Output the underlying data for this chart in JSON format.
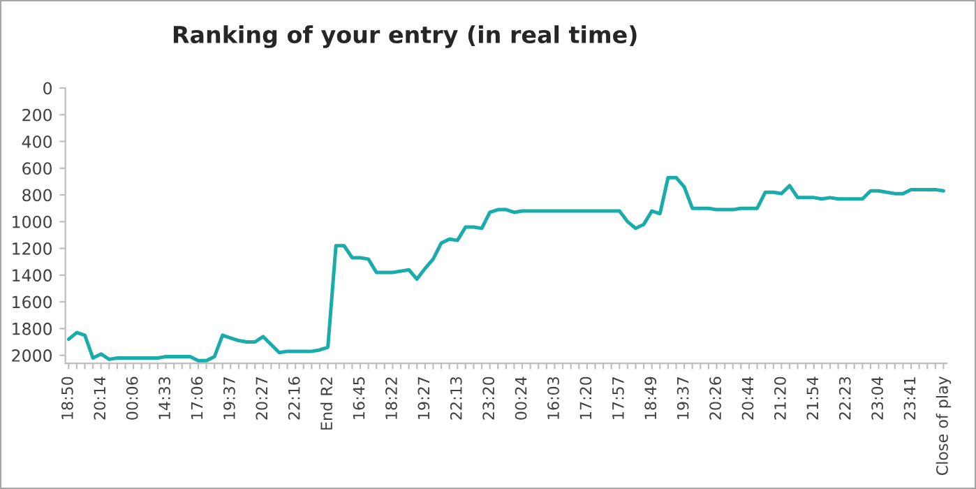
{
  "chart_data": {
    "type": "line",
    "title": "Ranking of your entry (in real time)",
    "categories": [
      "18:50",
      null,
      null,
      null,
      "20:14",
      null,
      null,
      null,
      "00:06",
      null,
      null,
      null,
      "14:33",
      null,
      null,
      null,
      "17:06",
      null,
      null,
      null,
      "19:37",
      null,
      null,
      null,
      "20:27",
      null,
      null,
      null,
      "22:16",
      null,
      null,
      null,
      "End R2",
      null,
      null,
      null,
      "16:45",
      null,
      null,
      null,
      "18:22",
      null,
      null,
      null,
      "19:27",
      null,
      null,
      null,
      "22:13",
      null,
      null,
      null,
      "23:20",
      null,
      null,
      null,
      "00:24",
      null,
      null,
      null,
      "16:03",
      null,
      null,
      null,
      "17:20",
      null,
      null,
      null,
      "17:57",
      null,
      null,
      null,
      "18:49",
      null,
      null,
      null,
      "19:37",
      null,
      null,
      null,
      "20:26",
      null,
      null,
      null,
      "20:44",
      null,
      null,
      null,
      "21:20",
      null,
      null,
      null,
      "21:54",
      null,
      null,
      null,
      "22:23",
      null,
      null,
      null,
      "23:04",
      null,
      null,
      null,
      "23:41",
      null,
      null,
      null,
      "Close of play"
    ],
    "series": [
      {
        "color": "#1aabab",
        "values": [
          1880,
          1830,
          1850,
          2020,
          1990,
          2030,
          2020,
          2020,
          2020,
          2020,
          2020,
          2020,
          2010,
          2010,
          2010,
          2010,
          2040,
          2040,
          2010,
          1850,
          1870,
          1890,
          1900,
          1900,
          1860,
          1920,
          1980,
          1970,
          1970,
          1970,
          1970,
          1960,
          1940,
          1180,
          1180,
          1270,
          1270,
          1280,
          1380,
          1380,
          1380,
          1370,
          1360,
          1430,
          1350,
          1280,
          1160,
          1130,
          1140,
          1040,
          1040,
          1050,
          930,
          910,
          910,
          930,
          920,
          920,
          920,
          920,
          920,
          920,
          920,
          920,
          920,
          920,
          920,
          920,
          920,
          1000,
          1050,
          1020,
          920,
          940,
          670,
          670,
          740,
          900,
          900,
          900,
          910,
          910,
          910,
          900,
          900,
          900,
          780,
          780,
          790,
          730,
          820,
          820,
          820,
          830,
          820,
          830,
          830,
          830,
          830,
          770,
          770,
          780,
          790,
          790,
          760,
          760,
          760,
          760,
          770
        ]
      }
    ],
    "ylim": [
      2060,
      0
    ],
    "yticks": [
      0,
      200,
      400,
      600,
      800,
      1000,
      1200,
      1400,
      1600,
      1800,
      2000
    ],
    "grid": false,
    "marker": "none",
    "line_style": "solid"
  }
}
